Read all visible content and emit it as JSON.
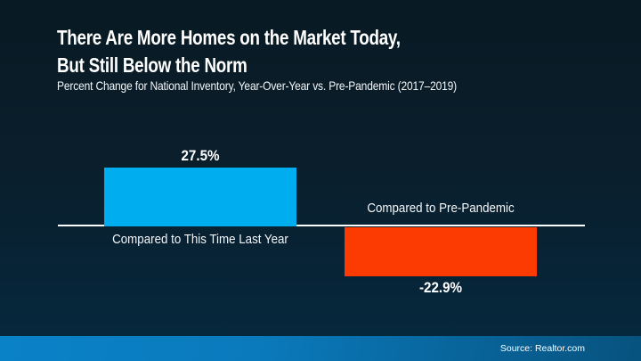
{
  "header": {
    "title_line1": "There Are More Homes on the Market Today,",
    "title_line2": "But Still Below the Norm",
    "subtitle": "Percent Change for National Inventory, Year-Over-Year vs. Pre-Pandemic (2017–2019)"
  },
  "chart_data": {
    "type": "bar",
    "title": "There Are More Homes on the Market Today, But Still Below the Norm",
    "subtitle": "Percent Change for National Inventory, Year-Over-Year vs. Pre-Pandemic (2017–2019)",
    "categories": [
      "Compared to This Time Last Year",
      "Compared to Pre-Pandemic"
    ],
    "values": [
      27.5,
      -22.9
    ],
    "value_labels": [
      "27.5%",
      "-22.9%"
    ],
    "series_colors": [
      "#00ADEE",
      "#FB3B01"
    ],
    "baseline": 0,
    "axis_color": "#FFFFFF",
    "grid": false,
    "legend": false,
    "ylim": [
      -30,
      35
    ]
  },
  "footer": {
    "source": "Source: Realtor.com"
  },
  "colors": {
    "background_top": "#081A23",
    "background_bottom": "#05293F",
    "positive_bar": "#00ADEE",
    "negative_bar": "#FB3B01",
    "footer_left": "#0A82C8",
    "footer_right": "#07527E"
  }
}
